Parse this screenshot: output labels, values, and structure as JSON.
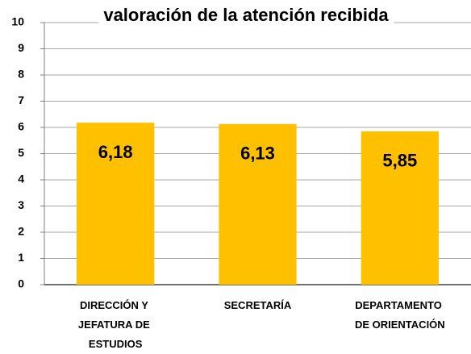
{
  "chart_data": {
    "type": "bar",
    "title": "valoración de la atención recibida",
    "categories": [
      "DIRECCIÓN Y JEFATURA DE ESTUDIOS",
      "SECRETARÍA",
      "DEPARTAMENTO DE ORIENTACIÓN"
    ],
    "values": [
      6.18,
      6.13,
      5.85
    ],
    "value_labels": [
      "6,18",
      "6,13",
      "5,85"
    ],
    "color": "#ffc000",
    "ylim": [
      0,
      10
    ],
    "yticks": [
      0,
      1,
      2,
      3,
      4,
      5,
      6,
      7,
      8,
      9,
      10
    ],
    "grid": true
  }
}
